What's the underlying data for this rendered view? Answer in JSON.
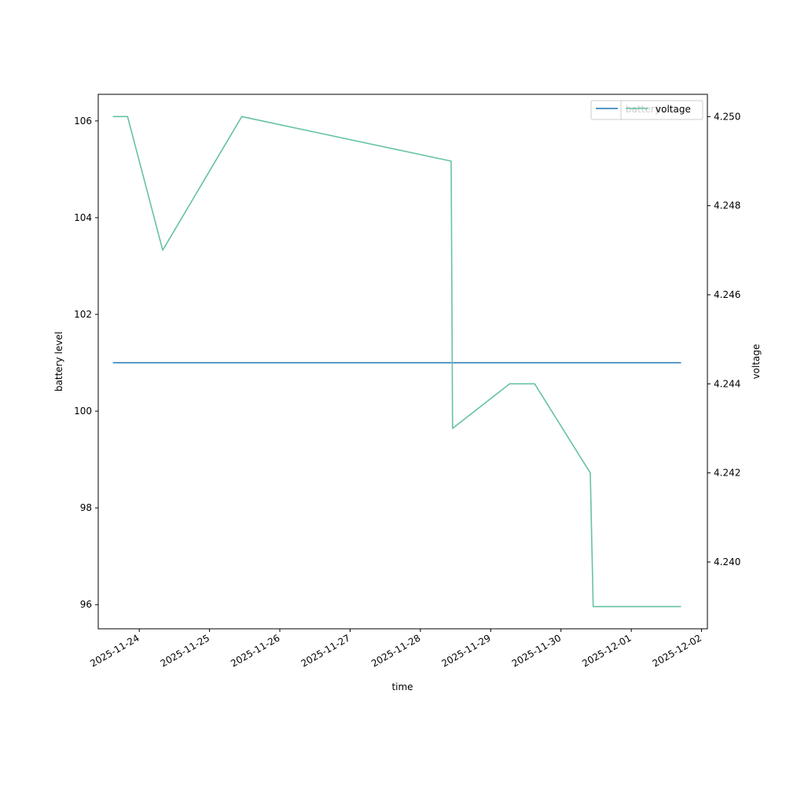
{
  "chart_data": {
    "type": "line",
    "title": "",
    "xlabel": "time",
    "ylabel_left": "battery level",
    "ylabel_right": "voltage",
    "x_tick_labels": [
      "2025-11-24",
      "2025-11-25",
      "2025-11-26",
      "2025-11-27",
      "2025-11-28",
      "2025-11-29",
      "2025-11-30",
      "2025-12-01",
      "2025-12-02"
    ],
    "y_left_ticks": [
      "96",
      "98",
      "100",
      "102",
      "104",
      "106"
    ],
    "y_right_ticks": [
      "4.240",
      "4.242",
      "4.244",
      "4.246",
      "4.248",
      "4.250"
    ],
    "x_range": [
      "2025-11-23 10:00",
      "2025-12-02 02:00"
    ],
    "y_left_range": [
      95.5,
      106.55
    ],
    "y_right_range": [
      4.2385,
      4.2505
    ],
    "grid": false,
    "legend_placement": "top-right",
    "series": [
      {
        "name": "battery",
        "axis": "left",
        "color": "#1f77b4",
        "points": [
          {
            "x": "2025-11-23 15:00",
            "y": 101
          },
          {
            "x": "2025-12-01 17:00",
            "y": 101
          }
        ]
      },
      {
        "name": "voltage",
        "axis": "right",
        "color": "#66c2a5",
        "points": [
          {
            "x": "2025-11-23 15:00",
            "y": 4.25
          },
          {
            "x": "2025-11-23 20:00",
            "y": 4.25
          },
          {
            "x": "2025-11-24 08:00",
            "y": 4.247
          },
          {
            "x": "2025-11-25 11:00",
            "y": 4.25
          },
          {
            "x": "2025-11-28 10:30",
            "y": 4.249
          },
          {
            "x": "2025-11-28 11:00",
            "y": 4.243
          },
          {
            "x": "2025-11-29 06:30",
            "y": 4.244
          },
          {
            "x": "2025-11-29 15:00",
            "y": 4.244
          },
          {
            "x": "2025-11-30 10:00",
            "y": 4.242
          },
          {
            "x": "2025-11-30 11:00",
            "y": 4.239
          },
          {
            "x": "2025-12-01 17:00",
            "y": 4.239
          }
        ]
      }
    ]
  }
}
